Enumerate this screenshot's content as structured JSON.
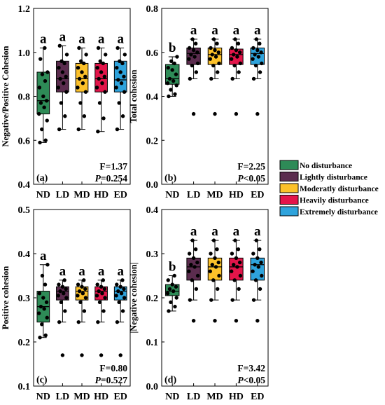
{
  "legend": {
    "items": [
      {
        "label": "No disturbance",
        "color": "#2e8b57"
      },
      {
        "label": "Lightly disturbance",
        "color": "#5b2c4e"
      },
      {
        "label": "Moderatly disturbance",
        "color": "#fcc12a"
      },
      {
        "label": "Heavily disturbance",
        "color": "#e3154a"
      },
      {
        "label": "Extremely disturbance",
        "color": "#2ea3dc"
      }
    ]
  },
  "chart_data": [
    {
      "type": "box",
      "panel": "(a)",
      "ylabel": "Negative/Positive Cohesion",
      "ylim": [
        0.4,
        1.2
      ],
      "yticks": [
        "0.4",
        "0.6",
        "0.8",
        "1.0",
        "1.2"
      ],
      "categories": [
        "ND",
        "LD",
        "MD",
        "HD",
        "ED"
      ],
      "boxes": [
        {
          "q1": 0.72,
          "median": 0.78,
          "q3": 0.91,
          "whisker_low": 0.59,
          "whisker_high": 1.02,
          "points": [
            0.59,
            0.6,
            0.65,
            0.69,
            0.72,
            0.75,
            0.77,
            0.78,
            0.8,
            0.84,
            0.87,
            0.9,
            0.91,
            0.97,
            1.02
          ]
        },
        {
          "q1": 0.82,
          "median": 0.88,
          "q3": 0.96,
          "whisker_low": 0.65,
          "whisker_high": 1.03,
          "points": [
            0.65,
            0.71,
            0.77,
            0.82,
            0.84,
            0.86,
            0.88,
            0.89,
            0.91,
            0.93,
            0.95,
            0.96,
            0.99,
            1.03
          ]
        },
        {
          "q1": 0.82,
          "median": 0.88,
          "q3": 0.95,
          "whisker_low": 0.65,
          "whisker_high": 1.02,
          "points": [
            0.65,
            0.71,
            0.77,
            0.82,
            0.84,
            0.86,
            0.88,
            0.89,
            0.91,
            0.93,
            0.95,
            0.96,
            0.99,
            1.02
          ]
        },
        {
          "q1": 0.82,
          "median": 0.88,
          "q3": 0.95,
          "whisker_low": 0.64,
          "whisker_high": 1.02,
          "points": [
            0.64,
            0.7,
            0.77,
            0.82,
            0.84,
            0.86,
            0.88,
            0.89,
            0.91,
            0.93,
            0.95,
            0.96,
            0.99,
            1.02
          ]
        },
        {
          "q1": 0.82,
          "median": 0.875,
          "q3": 0.96,
          "whisker_low": 0.65,
          "whisker_high": 1.02,
          "points": [
            0.65,
            0.71,
            0.77,
            0.82,
            0.84,
            0.86,
            0.875,
            0.89,
            0.91,
            0.93,
            0.95,
            0.96,
            0.99,
            1.02
          ]
        }
      ],
      "letters": [
        "a",
        "a",
        "a",
        "a",
        "a"
      ],
      "stat_f": "F=1.37",
      "stat_p_label": "P",
      "stat_p_value": "=0.254",
      "tag": "(a)"
    },
    {
      "type": "box",
      "panel": "(b)",
      "ylabel": "Total cohesion",
      "ylim": [
        0.0,
        0.8
      ],
      "yticks": [
        "0.0",
        "0.2",
        "0.4",
        "0.6",
        "0.8"
      ],
      "categories": [
        "ND",
        "LD",
        "MD",
        "HD",
        "ED"
      ],
      "boxes": [
        {
          "q1": 0.455,
          "median": 0.48,
          "q3": 0.545,
          "whisker_low": 0.4,
          "whisker_high": 0.58,
          "points": [
            0.4,
            0.41,
            0.43,
            0.45,
            0.46,
            0.47,
            0.48,
            0.5,
            0.52,
            0.53,
            0.55,
            0.56,
            0.58
          ]
        },
        {
          "q1": 0.545,
          "median": 0.595,
          "q3": 0.62,
          "whisker_low": 0.48,
          "whisker_high": 0.66,
          "outliers": [
            0.32
          ],
          "points": [
            0.48,
            0.51,
            0.54,
            0.55,
            0.57,
            0.58,
            0.59,
            0.6,
            0.61,
            0.62,
            0.64,
            0.66
          ]
        },
        {
          "q1": 0.545,
          "median": 0.59,
          "q3": 0.62,
          "whisker_low": 0.48,
          "whisker_high": 0.66,
          "outliers": [
            0.32
          ],
          "points": [
            0.48,
            0.51,
            0.54,
            0.55,
            0.57,
            0.58,
            0.59,
            0.6,
            0.61,
            0.62,
            0.64,
            0.66
          ]
        },
        {
          "q1": 0.545,
          "median": 0.59,
          "q3": 0.615,
          "whisker_low": 0.48,
          "whisker_high": 0.66,
          "outliers": [
            0.32
          ],
          "points": [
            0.48,
            0.51,
            0.54,
            0.55,
            0.57,
            0.58,
            0.59,
            0.6,
            0.61,
            0.62,
            0.64,
            0.66
          ]
        },
        {
          "q1": 0.545,
          "median": 0.595,
          "q3": 0.62,
          "whisker_low": 0.48,
          "whisker_high": 0.66,
          "outliers": [
            0.32
          ],
          "points": [
            0.48,
            0.51,
            0.54,
            0.55,
            0.57,
            0.58,
            0.59,
            0.6,
            0.61,
            0.62,
            0.64,
            0.66
          ]
        }
      ],
      "letters": [
        "b",
        "a",
        "a",
        "a",
        "a"
      ],
      "stat_f": "F=2.25",
      "stat_p_label": "P",
      "stat_p_value": "<0.05",
      "tag": "(b)"
    },
    {
      "type": "box",
      "panel": "(c)",
      "ylabel": "Positive cohesion",
      "ylim": [
        0.1,
        0.5
      ],
      "yticks": [
        "0.1",
        "0.2",
        "0.3",
        "0.4",
        "0.5"
      ],
      "categories": [
        "ND",
        "LD",
        "MD",
        "HD",
        "ED"
      ],
      "boxes": [
        {
          "q1": 0.245,
          "median": 0.28,
          "q3": 0.315,
          "whisker_low": 0.21,
          "whisker_high": 0.375,
          "points": [
            0.21,
            0.215,
            0.24,
            0.255,
            0.265,
            0.275,
            0.28,
            0.29,
            0.3,
            0.31,
            0.33,
            0.35,
            0.375
          ]
        },
        {
          "q1": 0.295,
          "median": 0.315,
          "q3": 0.325,
          "whisker_low": 0.245,
          "whisker_high": 0.34,
          "outliers": [
            0.17
          ],
          "points": [
            0.245,
            0.27,
            0.29,
            0.3,
            0.305,
            0.31,
            0.315,
            0.32,
            0.325,
            0.33,
            0.34
          ]
        },
        {
          "q1": 0.295,
          "median": 0.315,
          "q3": 0.325,
          "whisker_low": 0.245,
          "whisker_high": 0.34,
          "outliers": [
            0.17
          ],
          "points": [
            0.245,
            0.27,
            0.29,
            0.3,
            0.305,
            0.31,
            0.315,
            0.32,
            0.325,
            0.33,
            0.34
          ]
        },
        {
          "q1": 0.295,
          "median": 0.315,
          "q3": 0.325,
          "whisker_low": 0.245,
          "whisker_high": 0.34,
          "outliers": [
            0.17
          ],
          "points": [
            0.245,
            0.27,
            0.29,
            0.3,
            0.305,
            0.31,
            0.315,
            0.32,
            0.325,
            0.33,
            0.34
          ]
        },
        {
          "q1": 0.295,
          "median": 0.315,
          "q3": 0.325,
          "whisker_low": 0.245,
          "whisker_high": 0.34,
          "outliers": [
            0.17
          ],
          "points": [
            0.245,
            0.27,
            0.29,
            0.3,
            0.305,
            0.31,
            0.315,
            0.32,
            0.325,
            0.33,
            0.34
          ]
        }
      ],
      "letters": [
        "a",
        "a",
        "a",
        "a",
        "a"
      ],
      "stat_f": "F=0.80",
      "stat_p_label": "P",
      "stat_p_value": "=0.527",
      "tag": "(c)"
    },
    {
      "type": "box",
      "panel": "(d)",
      "ylabel": "|Negative cohesion|",
      "ylim": [
        0.0,
        0.4
      ],
      "yticks": [
        "0.0",
        "0.1",
        "0.2",
        "0.3",
        "0.4"
      ],
      "categories": [
        "ND",
        "LD",
        "MD",
        "HD",
        "ED"
      ],
      "boxes": [
        {
          "q1": 0.205,
          "median": 0.215,
          "q3": 0.23,
          "whisker_low": 0.17,
          "whisker_high": 0.25,
          "points": [
            0.17,
            0.18,
            0.19,
            0.2,
            0.21,
            0.215,
            0.22,
            0.225,
            0.23,
            0.24,
            0.25
          ]
        },
        {
          "q1": 0.24,
          "median": 0.27,
          "q3": 0.29,
          "whisker_low": 0.195,
          "whisker_high": 0.33,
          "outliers": [
            0.148
          ],
          "points": [
            0.195,
            0.22,
            0.24,
            0.25,
            0.26,
            0.27,
            0.275,
            0.28,
            0.29,
            0.3,
            0.31,
            0.33
          ]
        },
        {
          "q1": 0.24,
          "median": 0.27,
          "q3": 0.29,
          "whisker_low": 0.195,
          "whisker_high": 0.33,
          "outliers": [
            0.148
          ],
          "points": [
            0.195,
            0.22,
            0.24,
            0.25,
            0.26,
            0.27,
            0.275,
            0.28,
            0.29,
            0.3,
            0.31,
            0.33
          ]
        },
        {
          "q1": 0.24,
          "median": 0.27,
          "q3": 0.29,
          "whisker_low": 0.195,
          "whisker_high": 0.33,
          "outliers": [
            0.148
          ],
          "points": [
            0.195,
            0.22,
            0.24,
            0.25,
            0.26,
            0.27,
            0.275,
            0.28,
            0.29,
            0.3,
            0.31,
            0.33
          ]
        },
        {
          "q1": 0.24,
          "median": 0.275,
          "q3": 0.29,
          "whisker_low": 0.195,
          "whisker_high": 0.33,
          "outliers": [
            0.148
          ],
          "points": [
            0.195,
            0.22,
            0.24,
            0.25,
            0.26,
            0.27,
            0.275,
            0.28,
            0.29,
            0.3,
            0.31,
            0.33
          ]
        }
      ],
      "letters": [
        "b",
        "a",
        "a",
        "a",
        "a"
      ],
      "stat_f": "F=3.42",
      "stat_p_label": "P",
      "stat_p_value": "<0.05",
      "tag": "(d)"
    }
  ]
}
